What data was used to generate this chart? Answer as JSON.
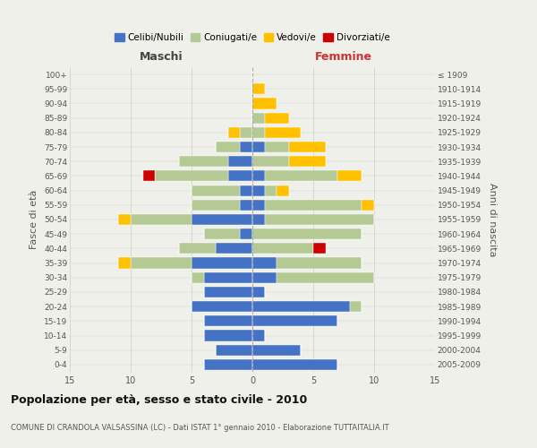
{
  "age_groups": [
    "0-4",
    "5-9",
    "10-14",
    "15-19",
    "20-24",
    "25-29",
    "30-34",
    "35-39",
    "40-44",
    "45-49",
    "50-54",
    "55-59",
    "60-64",
    "65-69",
    "70-74",
    "75-79",
    "80-84",
    "85-89",
    "90-94",
    "95-99",
    "100+"
  ],
  "birth_years": [
    "2005-2009",
    "2000-2004",
    "1995-1999",
    "1990-1994",
    "1985-1989",
    "1980-1984",
    "1975-1979",
    "1970-1974",
    "1965-1969",
    "1960-1964",
    "1955-1959",
    "1950-1954",
    "1945-1949",
    "1940-1944",
    "1935-1939",
    "1930-1934",
    "1925-1929",
    "1920-1924",
    "1915-1919",
    "1910-1914",
    "≤ 1909"
  ],
  "male": {
    "celibi": [
      4,
      3,
      4,
      4,
      5,
      4,
      4,
      5,
      3,
      1,
      5,
      1,
      1,
      2,
      2,
      1,
      0,
      0,
      0,
      0,
      0
    ],
    "coniugati": [
      0,
      0,
      0,
      0,
      0,
      0,
      1,
      5,
      3,
      3,
      5,
      4,
      4,
      6,
      4,
      2,
      1,
      0,
      0,
      0,
      0
    ],
    "vedovi": [
      0,
      0,
      0,
      0,
      0,
      0,
      0,
      1,
      0,
      0,
      1,
      0,
      0,
      0,
      0,
      0,
      1,
      0,
      0,
      0,
      0
    ],
    "divorziati": [
      0,
      0,
      0,
      0,
      0,
      0,
      0,
      0,
      0,
      0,
      0,
      0,
      0,
      1,
      0,
      0,
      0,
      0,
      0,
      0,
      0
    ]
  },
  "female": {
    "nubili": [
      7,
      4,
      1,
      7,
      8,
      1,
      2,
      2,
      0,
      0,
      1,
      1,
      1,
      1,
      0,
      1,
      0,
      0,
      0,
      0,
      0
    ],
    "coniugate": [
      0,
      0,
      0,
      0,
      1,
      0,
      8,
      7,
      5,
      9,
      9,
      8,
      1,
      6,
      3,
      2,
      1,
      1,
      0,
      0,
      0
    ],
    "vedove": [
      0,
      0,
      0,
      0,
      0,
      0,
      0,
      0,
      0,
      0,
      0,
      1,
      1,
      2,
      3,
      3,
      3,
      2,
      2,
      1,
      0
    ],
    "divorziate": [
      0,
      0,
      0,
      0,
      0,
      0,
      0,
      0,
      1,
      0,
      0,
      0,
      0,
      0,
      0,
      0,
      0,
      0,
      0,
      0,
      0
    ]
  },
  "colors": {
    "celibi": "#4472c4",
    "coniugati": "#b5c994",
    "vedovi": "#ffc000",
    "divorziati": "#cc0000"
  },
  "xlim": 15,
  "title": "Popolazione per età, sesso e stato civile - 2010",
  "subtitle": "COMUNE DI CRANDOLA VALSASSINA (LC) - Dati ISTAT 1° gennaio 2010 - Elaborazione TUTTAITALIA.IT",
  "ylabel_left": "Fasce di età",
  "ylabel_right": "Anni di nascita",
  "xlabel_left": "Maschi",
  "xlabel_right": "Femmine",
  "bg_color": "#f0f0eb",
  "legend_labels": [
    "Celibi/Nubili",
    "Coniugati/e",
    "Vedovi/e",
    "Divorziati/e"
  ]
}
